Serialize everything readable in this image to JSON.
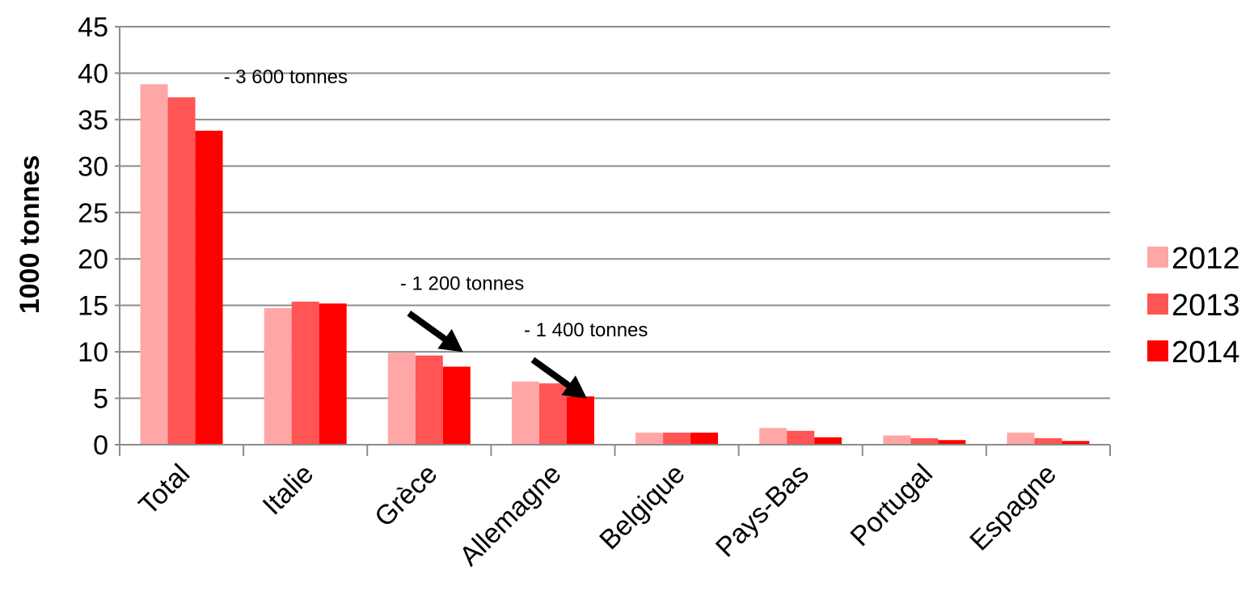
{
  "chart_data": {
    "type": "bar",
    "ylabel": "1000 tonnes",
    "ylim": [
      0,
      45
    ],
    "yticks": [
      "0",
      "5",
      "10",
      "15",
      "20",
      "25",
      "30",
      "35",
      "40",
      "45"
    ],
    "grid": true,
    "legend_position": "right",
    "categories": [
      "Total",
      "Italie",
      "Grèce",
      "Allemagne",
      "Belgique",
      "Pays-Bas",
      "Portugal",
      "Espagne"
    ],
    "series": [
      {
        "name": "2012",
        "color": "#ffa6a6",
        "values": [
          38.8,
          14.7,
          9.9,
          6.8,
          1.3,
          1.8,
          1.0,
          1.3
        ]
      },
      {
        "name": "2013",
        "color": "#ff5555",
        "values": [
          37.4,
          15.4,
          9.6,
          6.6,
          1.3,
          1.5,
          0.7,
          0.7
        ]
      },
      {
        "name": "2014",
        "color": "#ff0000",
        "values": [
          33.8,
          15.2,
          8.4,
          5.2,
          1.3,
          0.8,
          0.5,
          0.4
        ]
      }
    ],
    "annotations": [
      {
        "text": "- 3 600 tonnes",
        "category": "Total",
        "y": 37.5,
        "arrow": false
      },
      {
        "text": "- 1 200 tonnes",
        "category": "Grèce",
        "y": 16.5,
        "arrow": true
      },
      {
        "text": "- 1 400 tonnes",
        "category": "Allemagne",
        "y": 11.5,
        "arrow": true
      }
    ]
  }
}
